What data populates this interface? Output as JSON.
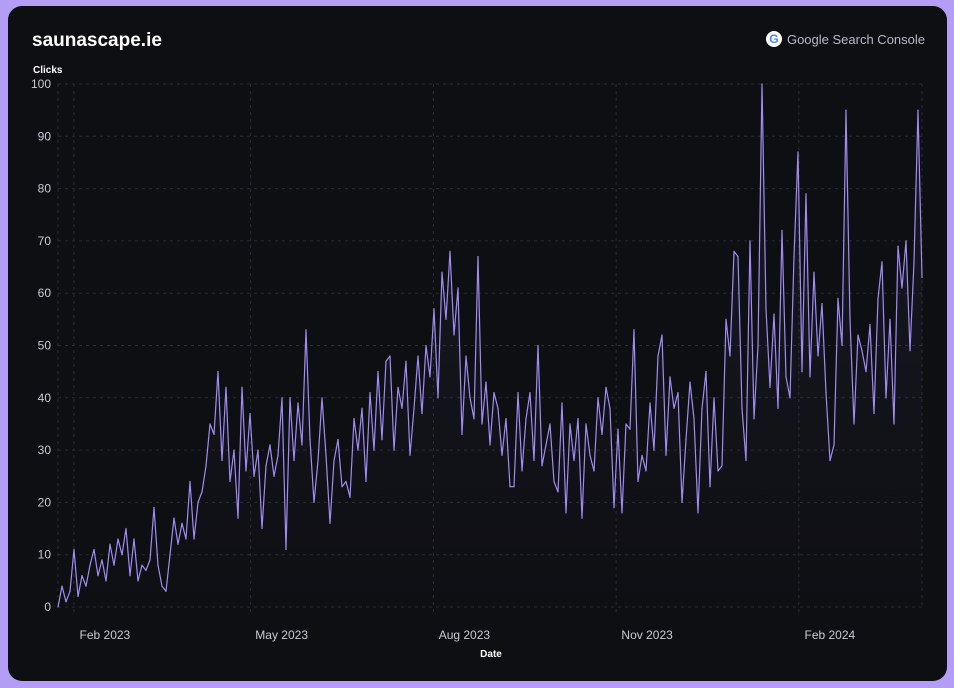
{
  "header": {
    "site": "saunascape.ie",
    "source": "Google Search Console",
    "source_icon": "google-g-icon"
  },
  "colors": {
    "line": "#a08cf0",
    "background": "#0e0f13",
    "frame": "#b39df5"
  },
  "chart_data": {
    "type": "line",
    "title": "saunascape.ie",
    "xlabel": "Date",
    "ylabel": "Clicks",
    "ylim": [
      0,
      100
    ],
    "yticks": [
      0,
      10,
      20,
      30,
      40,
      50,
      60,
      70,
      80,
      90,
      100
    ],
    "xticks": [
      {
        "date": "2023-02-01",
        "label": "Feb 2023"
      },
      {
        "date": "2023-05-01",
        "label": "May 2023"
      },
      {
        "date": "2023-08-01",
        "label": "Aug 2023"
      },
      {
        "date": "2023-11-01",
        "label": "Nov 2023"
      },
      {
        "date": "2024-02-01",
        "label": "Feb 2024"
      }
    ],
    "x_start": "2023-01-24",
    "x_end": "2024-04-03",
    "grid": true,
    "series": [
      {
        "name": "Clicks",
        "values": [
          0,
          4,
          1,
          3,
          11,
          2,
          6,
          4,
          8,
          11,
          6,
          9,
          5,
          12,
          8,
          13,
          10,
          15,
          6,
          13,
          5,
          8,
          7,
          9,
          19,
          8,
          4,
          3,
          10,
          17,
          12,
          16,
          13,
          24,
          13,
          20,
          22,
          27,
          35,
          33,
          45,
          28,
          42,
          24,
          30,
          17,
          42,
          26,
          37,
          25,
          30,
          15,
          27,
          31,
          25,
          29,
          40,
          11,
          40,
          28,
          39,
          31,
          53,
          32,
          20,
          28,
          40,
          29,
          16,
          28,
          32,
          23,
          24,
          21,
          36,
          30,
          38,
          24,
          41,
          30,
          45,
          32,
          47,
          48,
          30,
          42,
          38,
          47,
          29,
          38,
          48,
          37,
          50,
          44,
          57,
          40,
          64,
          55,
          68,
          52,
          61,
          33,
          48,
          40,
          36,
          67,
          35,
          43,
          31,
          41,
          38,
          29,
          36,
          23,
          23,
          41,
          26,
          36,
          41,
          28,
          50,
          27,
          31,
          35,
          24,
          22,
          39,
          18,
          35,
          28,
          36,
          17,
          35,
          29,
          26,
          40,
          33,
          42,
          38,
          19,
          34,
          18,
          35,
          34,
          53,
          24,
          29,
          26,
          39,
          30,
          48,
          52,
          29,
          44,
          38,
          41,
          20,
          32,
          43,
          36,
          18,
          38,
          45,
          23,
          40,
          26,
          27,
          55,
          48,
          68,
          67,
          38,
          28,
          70,
          36,
          50,
          100,
          57,
          42,
          56,
          38,
          72,
          44,
          40,
          67,
          87,
          45,
          79,
          44,
          64,
          48,
          58,
          41,
          28,
          31,
          59,
          50,
          95,
          55,
          35,
          52,
          49,
          45,
          54,
          37,
          59,
          66,
          40,
          55,
          35,
          69,
          61,
          70,
          49,
          66,
          95,
          63
        ]
      }
    ]
  }
}
